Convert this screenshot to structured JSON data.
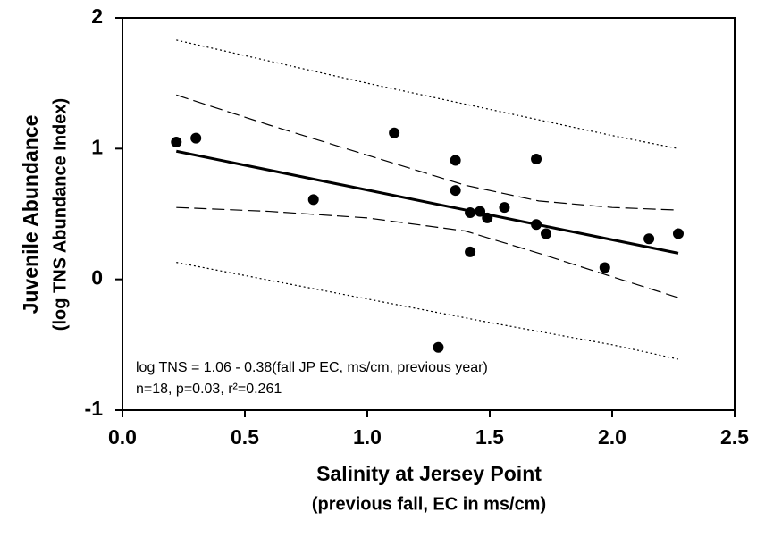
{
  "chart_data": {
    "type": "scatter",
    "xlabel": "Salinity at Jersey Point",
    "xlabel_sub": "(previous fall, EC in ms/cm)",
    "ylabel": "Juvenile Abundance",
    "ylabel_sub": "(log TNS Abundance Index)",
    "annotations": [
      "log TNS = 1.06 - 0.38(fall JP EC, ms/cm, previous year)",
      "n=18, p=0.03, r²=0.261"
    ],
    "xlim": [
      0,
      2.5
    ],
    "ylim": [
      -1,
      2
    ],
    "xticks": [
      {
        "value": 0,
        "label": "0.0"
      },
      {
        "value": 0.5,
        "label": "0.5"
      },
      {
        "value": 1,
        "label": "1.0"
      },
      {
        "value": 1.5,
        "label": "1.5"
      },
      {
        "value": 2,
        "label": "2.0"
      },
      {
        "value": 2.5,
        "label": "2.5"
      }
    ],
    "yticks": [
      -1,
      0,
      1,
      2
    ],
    "color": "#000000",
    "x": [
      0.22,
      0.3,
      0.78,
      1.11,
      1.29,
      1.36,
      1.36,
      1.42,
      1.42,
      1.46,
      1.49,
      1.56,
      1.69,
      1.69,
      1.73,
      1.97,
      2.15,
      2.27
    ],
    "values": [
      1.05,
      1.08,
      0.61,
      1.12,
      -0.52,
      0.91,
      0.68,
      0.51,
      0.21,
      0.52,
      0.47,
      0.55,
      0.92,
      0.42,
      0.35,
      0.09,
      0.31,
      0.35
    ],
    "lines": [
      {
        "style": "solid",
        "x": [
          0.22,
          2.27
        ],
        "values": [
          0.98,
          0.2
        ]
      },
      {
        "style": "dashed",
        "x": [
          0.22,
          0.6,
          1.0,
          1.4,
          1.7,
          2.0,
          2.27
        ],
        "values": [
          1.41,
          1.18,
          0.95,
          0.72,
          0.6,
          0.55,
          0.53
        ]
      },
      {
        "style": "dashed",
        "x": [
          0.22,
          0.6,
          1.0,
          1.4,
          1.7,
          2.0,
          2.27
        ],
        "values": [
          0.55,
          0.52,
          0.47,
          0.37,
          0.2,
          0.02,
          -0.14
        ]
      },
      {
        "style": "dotted",
        "x": [
          0.22,
          1.0,
          1.5,
          2.0,
          2.27
        ],
        "values": [
          1.83,
          1.5,
          1.3,
          1.1,
          1.0
        ]
      },
      {
        "style": "dotted",
        "x": [
          0.22,
          1.0,
          1.5,
          2.0,
          2.27
        ],
        "values": [
          0.13,
          -0.15,
          -0.33,
          -0.5,
          -0.61
        ]
      }
    ]
  }
}
